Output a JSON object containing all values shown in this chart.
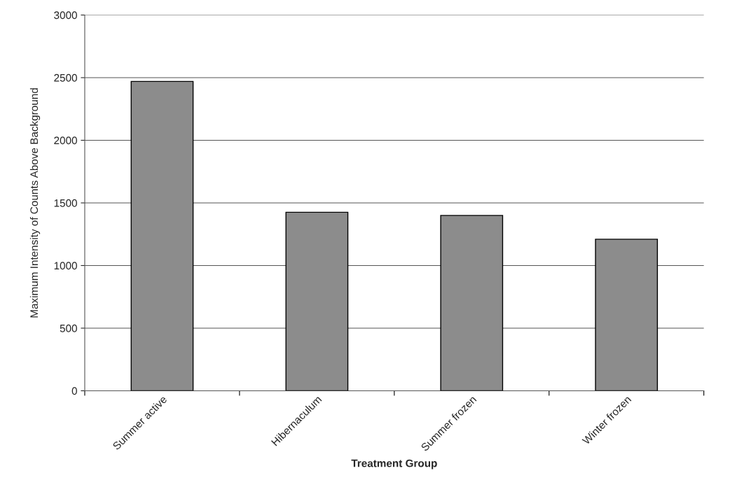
{
  "chart_data": {
    "type": "bar",
    "xlabel": "Treatment Group",
    "ylabel": "Maximum Intensity of Counts Above Background",
    "categories": [
      "Summer active",
      "Hibernaculum",
      "Summer frozen",
      "Winter frozen"
    ],
    "values": [
      2470,
      1425,
      1400,
      1210
    ],
    "color": "#8c8c8c",
    "ylim": [
      0,
      3000
    ],
    "yticks": [
      0,
      500,
      1000,
      1500,
      2000,
      2500,
      3000
    ],
    "grid": "y",
    "legend": false
  }
}
